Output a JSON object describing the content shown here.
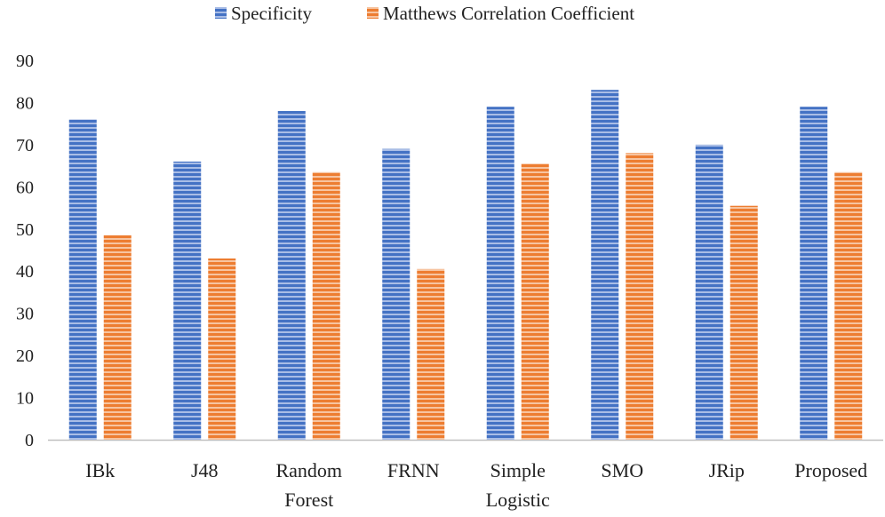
{
  "chart_data": {
    "type": "bar",
    "title": "",
    "xlabel": "",
    "ylabel": "",
    "ylim": [
      0,
      90
    ],
    "yticks": [
      0,
      10,
      20,
      30,
      40,
      50,
      60,
      70,
      80,
      90
    ],
    "grid": false,
    "legend_position": "top-center",
    "categories": [
      [
        "IBk"
      ],
      [
        "J48"
      ],
      [
        "Random",
        "Forest"
      ],
      [
        "FRNN"
      ],
      [
        "Simple",
        "Logistic"
      ],
      [
        "SMO"
      ],
      [
        "JRip"
      ],
      [
        "Proposed"
      ]
    ],
    "series": [
      {
        "name": "Specificity",
        "color": "#4472C4",
        "stripe_color": "#a9bde6",
        "values": [
          76,
          66,
          78,
          69,
          79,
          83,
          70,
          79
        ]
      },
      {
        "name": "Matthews Correlation Coefficient",
        "color": "#ED7D31",
        "stripe_color": "#f7c4a0",
        "values": [
          48.5,
          43,
          63.5,
          40.5,
          65.5,
          68,
          55.5,
          63.5
        ]
      }
    ]
  }
}
